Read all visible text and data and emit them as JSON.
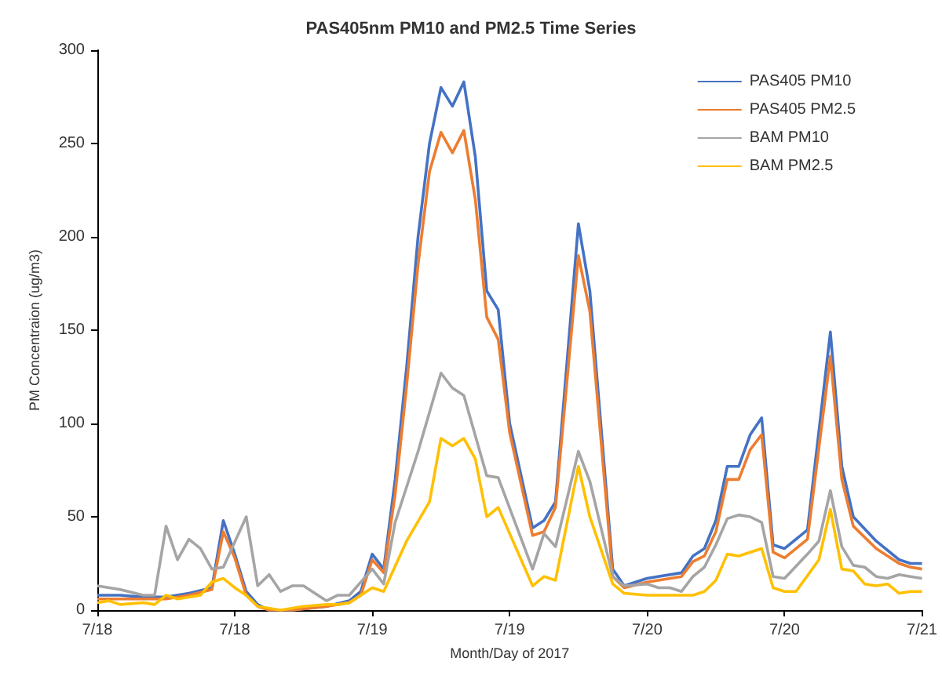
{
  "chart_data": {
    "type": "line",
    "title": "PAS405nm PM10 and PM2.5 Time Series",
    "xlabel": "Month/Day of 2017",
    "ylabel": "PM Concentraion (ug/m3)",
    "xlim": [
      "2017-07-18T00:00",
      "2017-07-21T00:00"
    ],
    "xticks": [
      {
        "value": "2017-07-18T00:00",
        "label": "7/18"
      },
      {
        "value": "2017-07-18T12:00",
        "label": "7/18"
      },
      {
        "value": "2017-07-19T00:00",
        "label": "7/19"
      },
      {
        "value": "2017-07-19T12:00",
        "label": "7/19"
      },
      {
        "value": "2017-07-20T00:00",
        "label": "7/20"
      },
      {
        "value": "2017-07-20T12:00",
        "label": "7/20"
      },
      {
        "value": "2017-07-21T00:00",
        "label": "7/21"
      }
    ],
    "ylim": [
      0,
      300
    ],
    "yticks": [
      0,
      50,
      100,
      150,
      200,
      250,
      300
    ],
    "grid": false,
    "legend": "top right",
    "marker": "none",
    "line_style": "solid",
    "x": [
      "2017-07-18T00:00",
      "2017-07-18T02:00",
      "2017-07-18T04:00",
      "2017-07-18T06:00",
      "2017-07-18T08:00",
      "2017-07-18T10:00",
      "2017-07-18T11:00",
      "2017-07-18T12:00",
      "2017-07-18T13:00",
      "2017-07-18T14:00",
      "2017-07-18T15:00",
      "2017-07-18T17:00",
      "2017-07-18T20:00",
      "2017-07-18T22:00",
      "2017-07-18T23:00",
      "2017-07-19T00:00",
      "2017-07-19T01:00",
      "2017-07-19T02:00",
      "2017-07-19T03:00",
      "2017-07-19T04:00",
      "2017-07-19T05:00",
      "2017-07-19T06:00",
      "2017-07-19T07:00",
      "2017-07-19T08:00",
      "2017-07-19T09:00",
      "2017-07-19T10:00",
      "2017-07-19T11:00",
      "2017-07-19T12:00",
      "2017-07-19T14:00",
      "2017-07-19T15:00",
      "2017-07-19T16:00",
      "2017-07-19T18:00",
      "2017-07-19T19:00",
      "2017-07-19T21:00",
      "2017-07-19T22:00",
      "2017-07-20T00:00",
      "2017-07-20T03:00",
      "2017-07-20T04:00",
      "2017-07-20T05:00",
      "2017-07-20T06:00",
      "2017-07-20T07:00",
      "2017-07-20T08:00",
      "2017-07-20T09:00",
      "2017-07-20T10:00",
      "2017-07-20T11:00",
      "2017-07-20T12:00",
      "2017-07-20T14:00",
      "2017-07-20T16:00",
      "2017-07-20T17:00",
      "2017-07-20T18:00",
      "2017-07-20T20:00",
      "2017-07-20T22:00",
      "2017-07-20T23:00",
      "2017-07-21T00:00"
    ],
    "series": [
      {
        "name": "PAS405 PM10",
        "color": "#4472c4",
        "values": [
          8,
          8,
          7,
          7,
          9,
          12,
          48,
          30,
          10,
          3,
          0,
          0,
          2,
          5,
          10,
          30,
          22,
          70,
          130,
          200,
          250,
          280,
          270,
          283,
          243,
          171,
          161,
          100,
          44,
          48,
          58,
          207,
          171,
          22,
          13,
          17,
          20,
          29,
          33,
          48,
          77,
          77,
          94,
          103,
          35,
          33,
          43,
          149,
          77,
          50,
          37,
          27,
          25,
          25
        ]
      },
      {
        "name": "PAS405 PM2.5",
        "color": "#ed7d31",
        "values": [
          6,
          6,
          6,
          6,
          8,
          11,
          42,
          28,
          8,
          2,
          0,
          0,
          2,
          4,
          8,
          27,
          20,
          62,
          120,
          185,
          235,
          256,
          245,
          257,
          220,
          157,
          145,
          95,
          40,
          42,
          55,
          190,
          160,
          18,
          12,
          15,
          18,
          26,
          29,
          42,
          70,
          70,
          86,
          94,
          31,
          28,
          38,
          136,
          70,
          45,
          33,
          25,
          23,
          22
        ]
      },
      {
        "name": "BAM PM10",
        "color": "#a5a5a5",
        "x": [
          "2017-07-18T00:00",
          "2017-07-18T02:00",
          "2017-07-18T04:00",
          "2017-07-18T05:00",
          "2017-07-18T06:00",
          "2017-07-18T07:00",
          "2017-07-18T08:00",
          "2017-07-18T09:00",
          "2017-07-18T10:00",
          "2017-07-18T11:00",
          "2017-07-18T13:00",
          "2017-07-18T14:00",
          "2017-07-18T15:00",
          "2017-07-18T16:00",
          "2017-07-18T17:00",
          "2017-07-18T18:00",
          "2017-07-18T20:00",
          "2017-07-18T21:00",
          "2017-07-18T22:00",
          "2017-07-19T00:00",
          "2017-07-19T01:00",
          "2017-07-19T02:00",
          "2017-07-19T04:00",
          "2017-07-19T06:00",
          "2017-07-19T07:00",
          "2017-07-19T08:00",
          "2017-07-19T10:00",
          "2017-07-19T11:00",
          "2017-07-19T14:00",
          "2017-07-19T15:00",
          "2017-07-19T16:00",
          "2017-07-19T18:00",
          "2017-07-19T19:00",
          "2017-07-19T21:00",
          "2017-07-19T22:00",
          "2017-07-20T00:00",
          "2017-07-20T01:00",
          "2017-07-20T02:00",
          "2017-07-20T03:00",
          "2017-07-20T04:00",
          "2017-07-20T05:00",
          "2017-07-20T06:00",
          "2017-07-20T07:00",
          "2017-07-20T08:00",
          "2017-07-20T09:00",
          "2017-07-20T10:00",
          "2017-07-20T11:00",
          "2017-07-20T12:00",
          "2017-07-20T14:00",
          "2017-07-20T15:00",
          "2017-07-20T16:00",
          "2017-07-20T17:00",
          "2017-07-20T18:00",
          "2017-07-20T19:00",
          "2017-07-20T20:00",
          "2017-07-20T21:00",
          "2017-07-20T22:00",
          "2017-07-20T23:00",
          "2017-07-21T00:00"
        ],
        "values": [
          13,
          11,
          8,
          8,
          45,
          27,
          38,
          33,
          22,
          23,
          50,
          13,
          19,
          10,
          13,
          13,
          5,
          8,
          8,
          22,
          14,
          47,
          85,
          127,
          119,
          115,
          72,
          71,
          22,
          41,
          34,
          85,
          69,
          18,
          13,
          14,
          12,
          12,
          10,
          18,
          23,
          35,
          49,
          51,
          50,
          47,
          18,
          17,
          30,
          37,
          64,
          34,
          24,
          23,
          18,
          17,
          19,
          18,
          17
        ]
      },
      {
        "name": "BAM PM2.5",
        "color": "#ffc000",
        "x": [
          "2017-07-18T00:00",
          "2017-07-18T01:00",
          "2017-07-18T02:00",
          "2017-07-18T04:00",
          "2017-07-18T05:00",
          "2017-07-18T06:00",
          "2017-07-18T07:00",
          "2017-07-18T09:00",
          "2017-07-18T10:00",
          "2017-07-18T11:00",
          "2017-07-18T12:00",
          "2017-07-18T13:00",
          "2017-07-18T14:00",
          "2017-07-18T16:00",
          "2017-07-18T18:00",
          "2017-07-18T20:00",
          "2017-07-18T21:00",
          "2017-07-18T22:00",
          "2017-07-19T00:00",
          "2017-07-19T01:00",
          "2017-07-19T03:00",
          "2017-07-19T05:00",
          "2017-07-19T06:00",
          "2017-07-19T07:00",
          "2017-07-19T08:00",
          "2017-07-19T09:00",
          "2017-07-19T10:00",
          "2017-07-19T11:00",
          "2017-07-19T14:00",
          "2017-07-19T15:00",
          "2017-07-19T16:00",
          "2017-07-19T18:00",
          "2017-07-19T19:00",
          "2017-07-19T21:00",
          "2017-07-19T22:00",
          "2017-07-20T00:00",
          "2017-07-20T04:00",
          "2017-07-20T05:00",
          "2017-07-20T06:00",
          "2017-07-20T07:00",
          "2017-07-20T08:00",
          "2017-07-20T09:00",
          "2017-07-20T10:00",
          "2017-07-20T11:00",
          "2017-07-20T12:00",
          "2017-07-20T13:00",
          "2017-07-20T15:00",
          "2017-07-20T16:00",
          "2017-07-20T17:00",
          "2017-07-20T18:00",
          "2017-07-20T19:00",
          "2017-07-20T20:00",
          "2017-07-20T21:00",
          "2017-07-20T22:00",
          "2017-07-20T23:00",
          "2017-07-21T00:00"
        ],
        "values": [
          4,
          5,
          3,
          4,
          3,
          8,
          6,
          8,
          15,
          17,
          12,
          8,
          2,
          0,
          2,
          3,
          3,
          4,
          12,
          10,
          37,
          58,
          92,
          88,
          92,
          81,
          50,
          55,
          13,
          18,
          16,
          77,
          50,
          14,
          9,
          8,
          8,
          10,
          16,
          30,
          29,
          31,
          33,
          12,
          10,
          10,
          27,
          54,
          22,
          21,
          14,
          13,
          14,
          9,
          10,
          10
        ]
      }
    ]
  }
}
